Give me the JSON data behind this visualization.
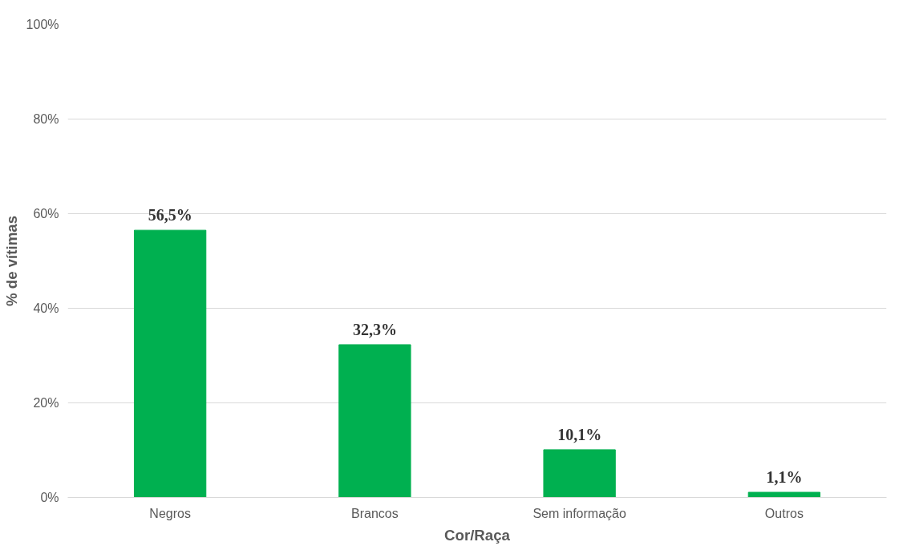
{
  "chart_data": {
    "type": "bar",
    "xlabel": "Cor/Raça",
    "ylabel": "% de vítimas",
    "categories": [
      "Negros",
      "Brancos",
      "Sem informação",
      "Outros"
    ],
    "values": [
      56.5,
      32.3,
      10.1,
      1.1
    ],
    "value_labels": [
      "56,5%",
      "32,3%",
      "10,1%",
      "1,1%"
    ],
    "color": "#00b050",
    "ylim": [
      0,
      100
    ],
    "yticks": [
      {
        "value": 0,
        "label": "0%"
      },
      {
        "value": 20,
        "label": "20%"
      },
      {
        "value": 40,
        "label": "40%"
      },
      {
        "value": 60,
        "label": "60%"
      },
      {
        "value": 80,
        "label": "80%"
      },
      {
        "value": 100,
        "label": "100%"
      }
    ],
    "grid": "y"
  }
}
